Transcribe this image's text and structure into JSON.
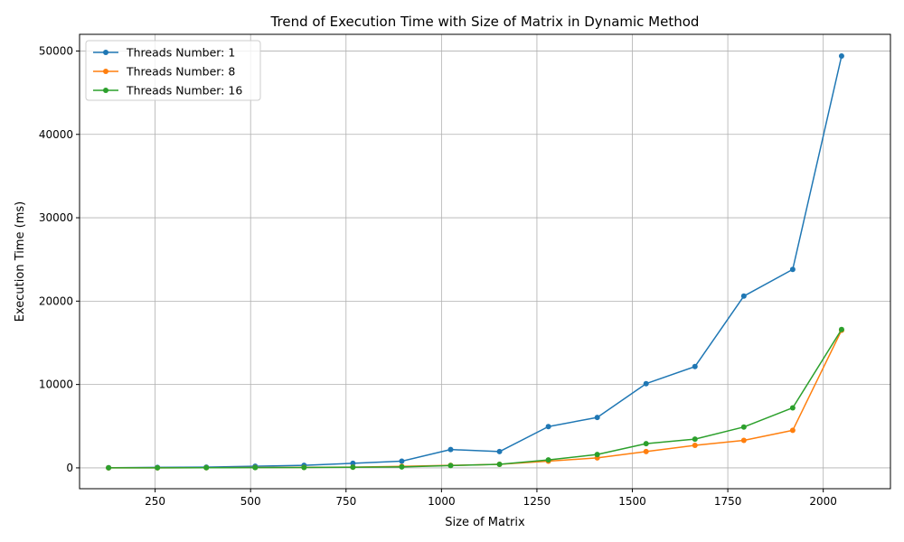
{
  "chart_data": {
    "type": "line",
    "title": "Trend of Execution Time with Size of Matrix in Dynamic Method",
    "xlabel": "Size of Matrix",
    "ylabel": "Execution Time (ms)",
    "xlim": [
      52,
      2176
    ],
    "ylim": [
      -2500,
      52000
    ],
    "xticks": [
      250,
      500,
      750,
      1000,
      1250,
      1500,
      1750,
      2000
    ],
    "yticks": [
      0,
      10000,
      20000,
      30000,
      40000,
      50000
    ],
    "grid": true,
    "legend_position": "top-left",
    "x": [
      128,
      256,
      384,
      512,
      640,
      768,
      896,
      1024,
      1152,
      1280,
      1408,
      1536,
      1664,
      1792,
      1920,
      2048
    ],
    "series": [
      {
        "name": "Threads Number: 1",
        "color": "#1f77b4",
        "values": [
          15,
          60,
          90,
          200,
          300,
          550,
          800,
          2200,
          1950,
          4950,
          6050,
          10100,
          12150,
          20600,
          23800,
          49400
        ]
      },
      {
        "name": "Threads Number: 8",
        "color": "#ff7f0e",
        "values": [
          5,
          10,
          20,
          40,
          60,
          90,
          180,
          300,
          420,
          800,
          1200,
          1950,
          2700,
          3300,
          4500,
          16500
        ]
      },
      {
        "name": "Threads Number: 16",
        "color": "#2ca02c",
        "values": [
          5,
          10,
          15,
          30,
          50,
          80,
          120,
          280,
          430,
          950,
          1600,
          2900,
          3450,
          4900,
          7200,
          16600
        ]
      }
    ]
  }
}
